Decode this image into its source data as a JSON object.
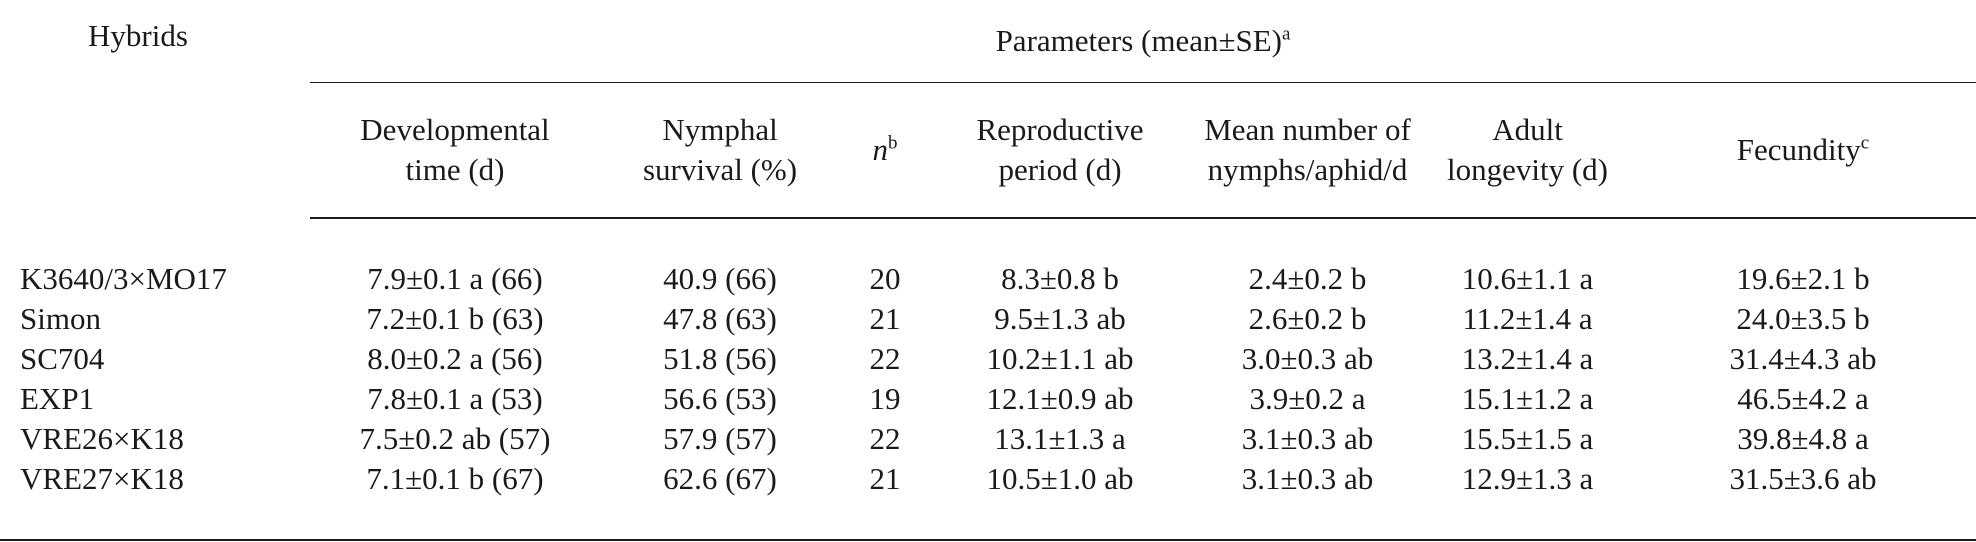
{
  "table": {
    "row_header": "Hybrids",
    "group_header": "Parameters (mean±SE)",
    "group_header_sup": "a",
    "columns": [
      {
        "line1": "Developmental",
        "line2": "time (d)"
      },
      {
        "line1": "Nymphal",
        "line2": "survival (%)"
      },
      {
        "label": "n",
        "sup": "b"
      },
      {
        "line1": "Reproductive",
        "line2": "period (d)"
      },
      {
        "line1": "Mean number of",
        "line2": "nymphs/aphid/d"
      },
      {
        "line1": "Adult",
        "line2": "longevity (d)"
      },
      {
        "label": "Fecundity",
        "sup": "c"
      }
    ],
    "rows": [
      {
        "hybrid": "K3640/3×MO17",
        "dev_time": "7.9±0.1 a (66)",
        "survival": "40.9 (66)",
        "n": "20",
        "repro": "8.3±0.8 b",
        "nymphs": "2.4±0.2 b",
        "longevity": "10.6±1.1 a",
        "fecundity": "19.6±2.1 b"
      },
      {
        "hybrid": "Simon",
        "dev_time": "7.2±0.1 b (63)",
        "survival": "47.8 (63)",
        "n": "21",
        "repro": "9.5±1.3 ab",
        "nymphs": "2.6±0.2 b",
        "longevity": "11.2±1.4 a",
        "fecundity": "24.0±3.5 b"
      },
      {
        "hybrid": "SC704",
        "dev_time": "8.0±0.2 a (56)",
        "survival": "51.8 (56)",
        "n": "22",
        "repro": "10.2±1.1 ab",
        "nymphs": "3.0±0.3 ab",
        "longevity": "13.2±1.4 a",
        "fecundity": "31.4±4.3 ab"
      },
      {
        "hybrid": "EXP1",
        "dev_time": "7.8±0.1 a (53)",
        "survival": "56.6 (53)",
        "n": "19",
        "repro": "12.1±0.9 ab",
        "nymphs": "3.9±0.2 a",
        "longevity": "15.1±1.2 a",
        "fecundity": "46.5±4.2 a"
      },
      {
        "hybrid": "VRE26×K18",
        "dev_time": "7.5±0.2 ab (57)",
        "survival": "57.9 (57)",
        "n": "22",
        "repro": "13.1±1.3 a",
        "nymphs": "3.1±0.3 ab",
        "longevity": "15.5±1.5 a",
        "fecundity": "39.8±4.8 a"
      },
      {
        "hybrid": "VRE27×K18",
        "dev_time": "7.1±0.1 b (67)",
        "survival": "62.6 (67)",
        "n": "21",
        "repro": "10.5±1.0 ab",
        "nymphs": "3.1±0.3 ab",
        "longevity": "12.9±1.3 a",
        "fecundity": "31.5±3.6 ab"
      }
    ]
  }
}
